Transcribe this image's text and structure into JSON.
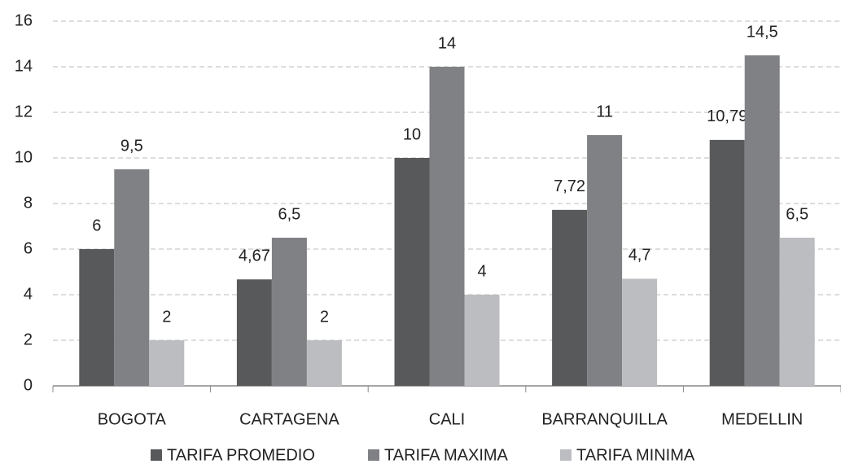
{
  "chart_data": {
    "type": "bar",
    "categories": [
      "BOGOTA",
      "CARTAGENA",
      "CALI",
      "BARRANQUILLA",
      "MEDELLIN"
    ],
    "series": [
      {
        "name": "TARIFA PROMEDIO",
        "color": "#58595b",
        "values": [
          6,
          4.67,
          10,
          7.72,
          10.79
        ],
        "value_labels": [
          "6",
          "4,67",
          "10",
          "7,72",
          "10,79"
        ]
      },
      {
        "name": "TARIFA MAXIMA",
        "color": "#808184",
        "values": [
          9.5,
          6.5,
          14,
          11,
          14.5
        ],
        "value_labels": [
          "9,5",
          "6,5",
          "14",
          "11",
          "14,5"
        ]
      },
      {
        "name": "TARIFA MINIMA",
        "color": "#bcbdc0",
        "values": [
          2,
          2,
          4,
          4.7,
          6.5
        ],
        "value_labels": [
          "2",
          "2",
          "4",
          "4,7",
          "6,5"
        ]
      }
    ],
    "ylim": [
      0,
      16
    ],
    "yticks": [
      0,
      2,
      4,
      6,
      8,
      10,
      12,
      14,
      16
    ],
    "grid": true,
    "legend": "bottom"
  }
}
